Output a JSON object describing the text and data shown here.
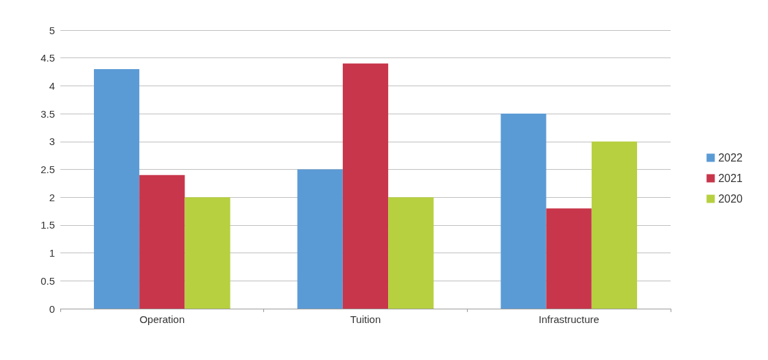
{
  "chart_data": {
    "type": "bar",
    "categories": [
      "Operation",
      "Tuition",
      "Infrastructure"
    ],
    "series": [
      {
        "name": "2022",
        "color": "#5b9bd5",
        "values": [
          4.3,
          2.5,
          3.5
        ]
      },
      {
        "name": "2021",
        "color": "#c8364b",
        "values": [
          2.4,
          4.4,
          1.8
        ]
      },
      {
        "name": "2020",
        "color": "#b6d03f",
        "values": [
          2,
          2,
          3
        ]
      }
    ],
    "ylim": [
      0,
      5
    ],
    "yticks": [
      0,
      0.5,
      1,
      1.5,
      2,
      2.5,
      3,
      3.5,
      4,
      4.5,
      5
    ],
    "grid": "y",
    "legend": "right"
  }
}
